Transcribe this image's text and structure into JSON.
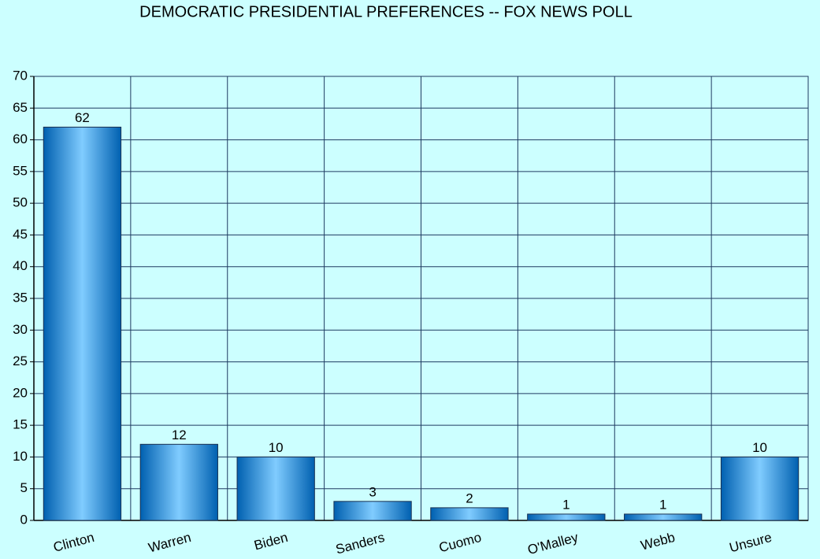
{
  "chart_data": {
    "type": "bar",
    "title": "DEMOCRATIC PRESIDENTIAL PREFERENCES -- FOX NEWS POLL",
    "categories": [
      "Clinton",
      "Warren",
      "Biden",
      "Sanders",
      "Cuomo",
      "O'Malley",
      "Webb",
      "Unsure"
    ],
    "values": [
      62,
      12,
      10,
      3,
      2,
      1,
      1,
      10
    ],
    "color": "#0a82d8",
    "ylim": [
      0,
      70
    ],
    "yticks": [
      0,
      5,
      10,
      15,
      20,
      25,
      30,
      35,
      40,
      45,
      50,
      55,
      60,
      65,
      70
    ],
    "grid": true
  }
}
